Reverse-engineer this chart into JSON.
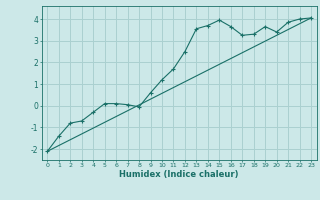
{
  "title": "",
  "xlabel": "Humidex (Indice chaleur)",
  "ylabel": "",
  "background_color": "#cce8e8",
  "grid_color": "#aad0d0",
  "line_color": "#1a7068",
  "xlim": [
    -0.5,
    23.5
  ],
  "ylim": [
    -2.5,
    4.6
  ],
  "xticks": [
    0,
    1,
    2,
    3,
    4,
    5,
    6,
    7,
    8,
    9,
    10,
    11,
    12,
    13,
    14,
    15,
    16,
    17,
    18,
    19,
    20,
    21,
    22,
    23
  ],
  "yticks": [
    -2,
    -1,
    0,
    1,
    2,
    3,
    4
  ],
  "curve_x": [
    0,
    1,
    2,
    3,
    4,
    5,
    6,
    7,
    8,
    9,
    10,
    11,
    12,
    13,
    14,
    15,
    16,
    17,
    18,
    19,
    20,
    21,
    22,
    23
  ],
  "curve_y": [
    -2.1,
    -1.4,
    -0.8,
    -0.7,
    -0.3,
    0.1,
    0.1,
    0.05,
    -0.05,
    0.6,
    1.2,
    1.7,
    2.5,
    3.55,
    3.7,
    3.95,
    3.65,
    3.25,
    3.3,
    3.65,
    3.4,
    3.85,
    4.0,
    4.05
  ],
  "line_x": [
    0,
    23
  ],
  "line_y": [
    -2.1,
    4.05
  ]
}
